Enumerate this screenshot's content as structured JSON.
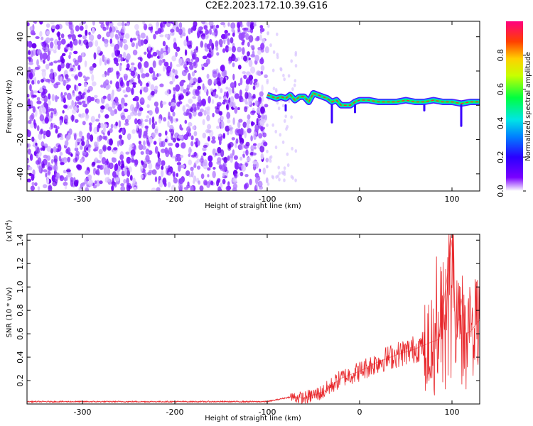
{
  "title": "C2E2.2023.172.10.39.G16",
  "chart_data": [
    {
      "type": "heatmap",
      "xlabel": "Height of straight line (km)",
      "ylabel": "Frequency (Hz)",
      "xlim": [
        -360,
        130
      ],
      "ylim": [
        -50,
        49
      ],
      "xticks": [
        -300,
        -200,
        -100,
        0,
        100
      ],
      "yticks": [
        -40,
        -20,
        0,
        20,
        40
      ],
      "noise_region_x": [
        -360,
        -100
      ],
      "sparse_noise_x": [
        -100,
        -68
      ],
      "signal_trace": {
        "x": [
          -100,
          -95,
          -90,
          -85,
          -80,
          -75,
          -70,
          -65,
          -60,
          -55,
          -50,
          -45,
          -40,
          -35,
          -30,
          -25,
          -20,
          -15,
          -10,
          -5,
          0,
          10,
          20,
          30,
          40,
          50,
          60,
          70,
          80,
          90,
          100,
          110,
          120,
          130
        ],
        "frequency_hz": [
          6,
          5,
          4,
          5,
          4,
          6,
          3,
          5,
          5,
          2,
          7,
          6,
          5,
          4,
          2,
          3,
          0,
          0,
          0,
          2,
          3,
          3,
          2,
          2,
          2,
          3,
          2,
          2,
          3,
          2,
          2,
          1,
          2,
          2
        ]
      },
      "colorbar": {
        "label": "Normalized spectral amplitude",
        "ticks": [
          0.0,
          0.2,
          0.4,
          0.6,
          0.8
        ],
        "range": [
          0,
          1
        ]
      }
    },
    {
      "type": "line",
      "xlabel": "Height of straight line (km)",
      "ylabel": "SNR (10 * v/v)",
      "y_multiplier_label": "(x10",
      "y_multiplier_exp": "4",
      "y_multiplier_close": ")",
      "xlim": [
        -360,
        130
      ],
      "ylim": [
        0,
        1.45
      ],
      "xticks": [
        -300,
        -200,
        -100,
        0,
        100
      ],
      "yticks": [
        0.2,
        0.4,
        0.6,
        0.8,
        1.0,
        1.2,
        1.4
      ],
      "series": [
        {
          "color": "#e8262a",
          "x": [
            -360,
            -300,
            -200,
            -100,
            -75,
            -60,
            -40,
            -20,
            0,
            20,
            40,
            60,
            75,
            85,
            90,
            95,
            100,
            105,
            110,
            115,
            120,
            130
          ],
          "values": [
            0.02,
            0.02,
            0.02,
            0.02,
            0.06,
            0.05,
            0.1,
            0.22,
            0.28,
            0.36,
            0.42,
            0.47,
            0.52,
            0.55,
            0.8,
            1.1,
            1.4,
            0.55,
            0.9,
            0.6,
            0.62,
            0.72
          ]
        }
      ]
    }
  ]
}
